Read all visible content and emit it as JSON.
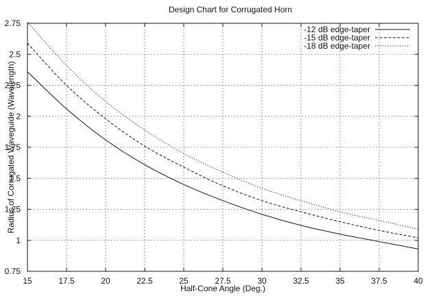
{
  "chart_data": {
    "type": "line",
    "title": "Design Chart for Corrugated Horn",
    "xlabel": "Half-Cone Angle (Deg.)",
    "ylabel": "Radius of Corrugated Waveguide (Wavelength)",
    "xlim": [
      15,
      40
    ],
    "ylim": [
      0.75,
      2.75
    ],
    "grid": true,
    "legend_position": "top-right",
    "xticks": [
      "15",
      "17.5",
      "20",
      "22.5",
      "25",
      "27.5",
      "30",
      "32.5",
      "35",
      "37.5",
      "40"
    ],
    "yticks": [
      "0.75",
      "1",
      "1.25",
      "1.5",
      "1.75",
      "2",
      "2.25",
      "2.5",
      "2.75"
    ],
    "x": [
      15,
      17.5,
      20,
      22.5,
      25,
      27.5,
      30,
      32.5,
      35,
      37.5,
      40
    ],
    "series": [
      {
        "name": "-12 dB edge-taper",
        "style": "solid",
        "values": [
          2.36,
          2.06,
          1.81,
          1.61,
          1.45,
          1.32,
          1.21,
          1.12,
          1.05,
          0.99,
          0.93
        ]
      },
      {
        "name": "-15 dB edge-taper",
        "style": "dashed",
        "values": [
          2.59,
          2.25,
          1.98,
          1.76,
          1.59,
          1.44,
          1.32,
          1.23,
          1.15,
          1.08,
          1.02
        ]
      },
      {
        "name": "-18 dB edge-taper",
        "style": "dotted",
        "values": [
          2.76,
          2.41,
          2.12,
          1.89,
          1.7,
          1.55,
          1.42,
          1.32,
          1.23,
          1.16,
          1.09
        ]
      }
    ]
  }
}
